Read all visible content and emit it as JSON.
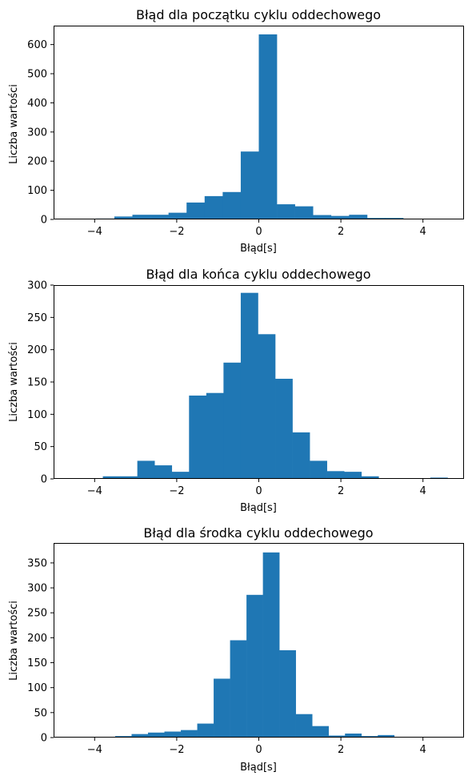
{
  "chart_data": [
    {
      "type": "bar",
      "title": "Błąd dla początku cyklu oddechowego",
      "xlabel": "Błąd[s]",
      "ylabel": "Liczba wartości",
      "xlim": [
        -5,
        5
      ],
      "ylim": [
        0,
        665
      ],
      "xticks": [
        -4,
        -2,
        0,
        2,
        4
      ],
      "xtick_labels": [
        "−4",
        "−2",
        "0",
        "2",
        "4"
      ],
      "yticks": [
        0,
        100,
        200,
        300,
        400,
        500,
        600
      ],
      "bin_edges": [
        -4.4,
        -3.96,
        -3.52,
        -3.08,
        -2.64,
        -2.2,
        -1.76,
        -1.32,
        -0.88,
        -0.44,
        0.0,
        0.44,
        0.88,
        1.32,
        1.76,
        2.2,
        2.64,
        3.08,
        3.52,
        3.96,
        4.4,
        4.84,
        5.28
      ],
      "values": [
        2,
        3,
        10,
        16,
        16,
        23,
        58,
        80,
        94,
        233,
        635,
        52,
        45,
        15,
        12,
        16,
        5,
        5,
        1,
        0,
        1,
        1
      ],
      "grid": false
    },
    {
      "type": "bar",
      "title": "Błąd dla końca cyklu oddechowego",
      "xlabel": "Błąd[s]",
      "ylabel": "Liczba wartości",
      "xlim": [
        -5,
        5
      ],
      "ylim": [
        0,
        300
      ],
      "xticks": [
        -4,
        -2,
        0,
        2,
        4
      ],
      "xtick_labels": [
        "−4",
        "−2",
        "0",
        "2",
        "4"
      ],
      "yticks": [
        0,
        50,
        100,
        150,
        200,
        250,
        300
      ],
      "bin_edges": [
        -5.06,
        -4.64,
        -4.22,
        -3.8,
        -3.38,
        -2.96,
        -2.54,
        -2.12,
        -1.7,
        -1.28,
        -0.86,
        -0.44,
        -0.02,
        0.4,
        0.82,
        1.24,
        1.66,
        2.08,
        2.5,
        2.92,
        3.34,
        3.76,
        4.18,
        4.6,
        5.02
      ],
      "values": [
        1,
        1,
        1,
        4,
        4,
        28,
        21,
        11,
        129,
        133,
        180,
        288,
        224,
        155,
        72,
        28,
        12,
        11,
        4,
        0,
        1,
        0,
        2,
        1
      ],
      "grid": false
    },
    {
      "type": "bar",
      "title": "Błąd dla środka cyklu oddechowego",
      "xlabel": "Błąd[s]",
      "ylabel": "Liczba wartości",
      "xlim": [
        -5,
        5
      ],
      "ylim": [
        0,
        390
      ],
      "xticks": [
        -4,
        -2,
        0,
        2,
        4
      ],
      "xtick_labels": [
        "−4",
        "−2",
        "0",
        "2",
        "4"
      ],
      "yticks": [
        0,
        50,
        100,
        150,
        200,
        250,
        300,
        350
      ],
      "bin_edges": [
        -4.3,
        -3.9,
        -3.5,
        -3.1,
        -2.7,
        -2.3,
        -1.9,
        -1.5,
        -1.1,
        -0.7,
        -0.3,
        0.1,
        0.5,
        0.9,
        1.3,
        1.7,
        2.1,
        2.5,
        2.9,
        3.3,
        3.7,
        4.1,
        4.5,
        4.9,
        5.3
      ],
      "values": [
        1,
        1,
        3,
        7,
        10,
        12,
        15,
        28,
        118,
        195,
        286,
        371,
        175,
        47,
        23,
        4,
        8,
        3,
        5,
        1,
        0,
        1,
        0,
        1
      ],
      "grid": false
    }
  ]
}
